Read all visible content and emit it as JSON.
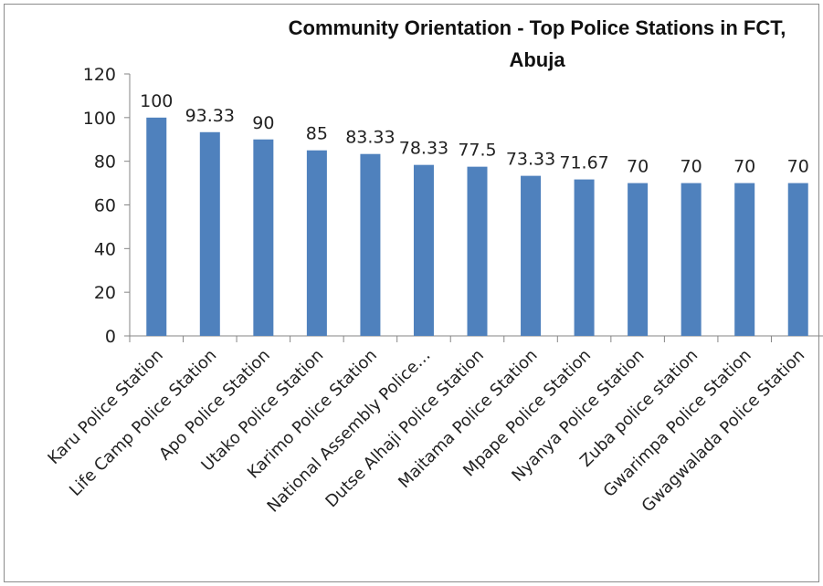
{
  "chart_data": {
    "type": "bar",
    "title_lines": [
      "Community Orientation - Top Police Stations in FCT,",
      "Abuja"
    ],
    "categories": [
      "Karu Police Station",
      "Life Camp Police Station",
      "Apo Police Station",
      "Utako Police Station",
      "Karimo Police Station",
      "National Assembly Police…",
      "Dutse Alhaji Police Station",
      "Maitama Police Station",
      "Mpape Police Station",
      "Nyanya Police Station",
      "Zuba police station",
      "Gwarimpa Police Station",
      "Gwagwalada Police Station"
    ],
    "values": [
      100,
      93.33,
      90,
      85,
      83.33,
      78.33,
      77.5,
      73.33,
      71.67,
      70,
      70,
      70,
      70
    ],
    "data_labels": [
      "100",
      "93.33",
      "90",
      "85",
      "83.33",
      "78.33",
      "77.5",
      "73.33",
      "71.67",
      "70",
      "70",
      "70",
      "70"
    ],
    "ylim": [
      0,
      120
    ],
    "yticks": [
      "0",
      "20",
      "40",
      "60",
      "80",
      "100",
      "120"
    ],
    "xlabel": "",
    "ylabel": "",
    "grid": false,
    "legend": "none",
    "bar_color": "#4f81bd"
  }
}
